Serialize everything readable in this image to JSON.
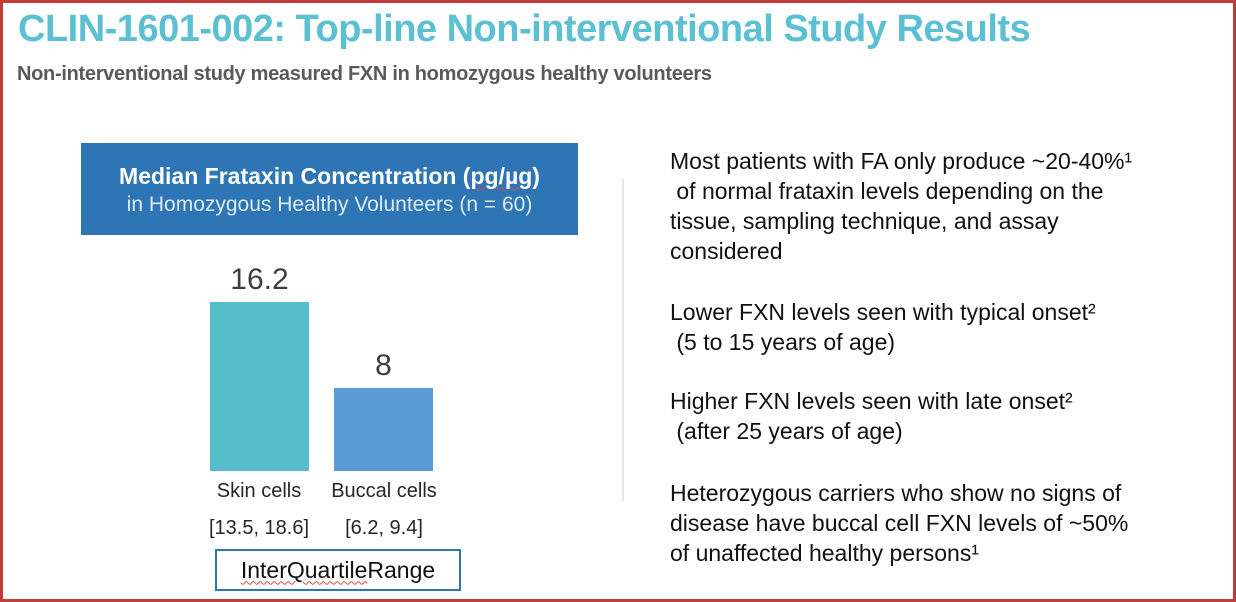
{
  "slide": {
    "title": "CLIN-1601-002: Top-line Non-interventional Study Results",
    "subtitle": "Non-interventional study measured FXN in homozygous healthy volunteers",
    "accent_color": "#5cc0d3",
    "border_color": "#c23b3b"
  },
  "chart": {
    "header": {
      "title_prefix": "Median Frataxin Concentration (",
      "title_unit": "pg/µg",
      "title_suffix": ")",
      "subtitle": "in Homozygous Healthy Volunteers (n = 60)",
      "background_color": "#2e75b6"
    },
    "legend": {
      "label_word1": "InterQuartile",
      "label_rest": " Range",
      "border_color": "#2e75b6"
    }
  },
  "chart_data": {
    "type": "bar",
    "title": "Median Frataxin Concentration (pg/µg)",
    "subtitle": "in Homozygous Healthy Volunteers (n = 60)",
    "categories": [
      "Skin cells",
      "Buccal cells"
    ],
    "values": [
      16.2,
      8
    ],
    "value_labels": [
      "16.2",
      "8"
    ],
    "iqr": [
      [
        13.5,
        18.6
      ],
      [
        6.2,
        9.4
      ]
    ],
    "iqr_labels": [
      "[13.5, 18.6]",
      "[6.2, 9.4]"
    ],
    "bar_colors": [
      "#57bccb",
      "#5b9bd5"
    ],
    "ylim": [
      0,
      18
    ],
    "grid": false,
    "axes_visible": false,
    "legend": "InterQuartile Range",
    "legend_position": "bottom"
  },
  "right_panel": {
    "paragraphs": [
      "Most patients with FA only produce ~20-40%¹\n of normal frataxin levels depending on the\ntissue, sampling technique, and assay\nconsidered",
      "Lower FXN levels seen with typical onset²\n (5 to 15 years of age)",
      "Higher FXN levels seen with late onset²\n (after 25 years of age)",
      "Heterozygous carriers who show no signs of\ndisease have buccal cell FXN levels of ~50%\nof unaffected healthy persons¹"
    ]
  }
}
